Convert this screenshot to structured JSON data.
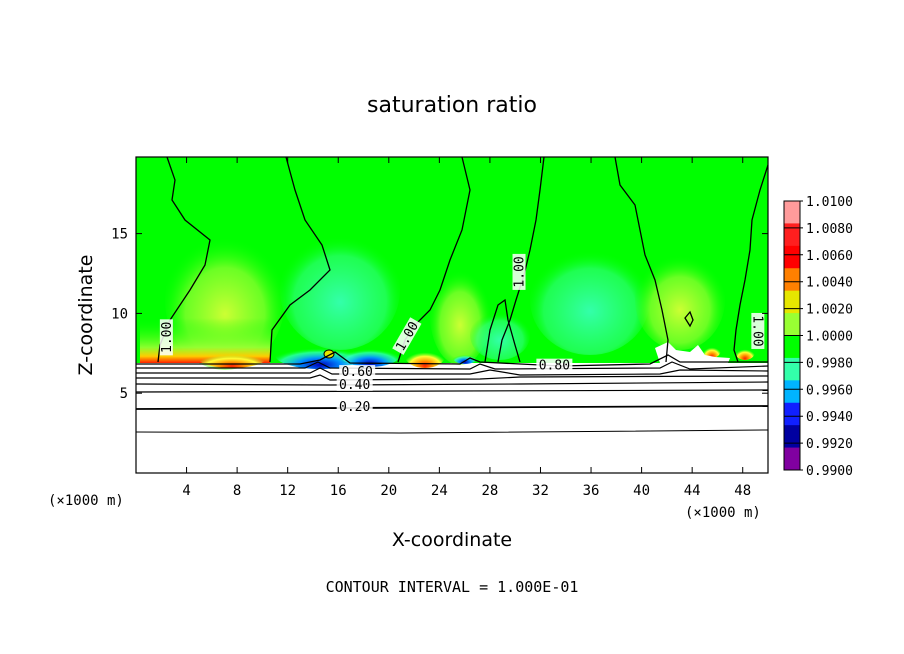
{
  "chart_data": {
    "type": "heatmap",
    "title": "saturation ratio",
    "xlabel": "X-coordinate",
    "ylabel": "Z-coordinate",
    "x_unit": "(×1000 m)",
    "xlim": [
      0,
      50
    ],
    "ylim": [
      0,
      19.8
    ],
    "x_ticks": [
      4,
      8,
      12,
      16,
      20,
      24,
      28,
      32,
      36,
      40,
      44,
      48
    ],
    "y_ticks": [
      5,
      10,
      15
    ],
    "colorbar": {
      "labels": [
        "1.0100",
        "1.0080",
        "1.0060",
        "1.0040",
        "1.0020",
        "1.0000",
        "0.9980",
        "0.9960",
        "0.9940",
        "0.9920",
        "0.9900"
      ],
      "colors": [
        "#ff9b9b",
        "#ff1f1f",
        "#ff0000",
        "#ff8000",
        "#e6e600",
        "#99ff33",
        "#00ff00",
        "#33ffaa",
        "#00b4ff",
        "#1020ff",
        "#0000a0",
        "#8000a0"
      ]
    },
    "contour_labels": [
      {
        "text": "1.00",
        "x": 2.6,
        "z": 8.5,
        "rotate": -90
      },
      {
        "text": "1.00",
        "x": 21.6,
        "z": 8.5,
        "rotate": -60
      },
      {
        "text": "1.00",
        "x": 30.5,
        "z": 12.6,
        "rotate": -90
      },
      {
        "text": "1.00",
        "x": 49.0,
        "z": 8.9,
        "rotate": 90
      },
      {
        "text": "0.80",
        "x": 33.1,
        "z": 6.6,
        "rotate": 0
      },
      {
        "text": "0.60",
        "x": 17.5,
        "z": 6.2,
        "rotate": 0
      },
      {
        "text": "0.40",
        "x": 17.3,
        "z": 5.4,
        "rotate": 0
      },
      {
        "text": "0.20",
        "x": 17.3,
        "z": 4.0,
        "rotate": 0
      }
    ],
    "footer": "CONTOUR INTERVAL = 1.000E-01"
  }
}
